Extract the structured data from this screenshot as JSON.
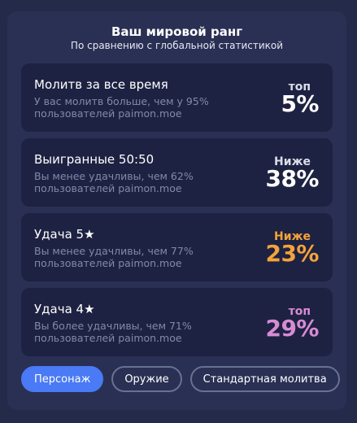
{
  "header": {
    "title": "Ваш мировой ранг",
    "subtitle": "По сравнению с глобальной статистикой"
  },
  "cards": [
    {
      "title": "Молитв за все время",
      "desc": "У вас молитв больше, чем у 95% пользователей paimon.moe",
      "rank_word": "топ",
      "rank_pct": "5%",
      "color": "#ffffff",
      "word_color": "#dadde9"
    },
    {
      "title": "Выигранные 50:50",
      "desc": "Вы менее удачливы, чем 62% пользователей paimon.moe",
      "rank_word": "Ниже",
      "rank_pct": "38%",
      "color": "#ffffff",
      "word_color": "#dadde9"
    },
    {
      "title": "Удача 5★",
      "desc": "Вы менее удачливы, чем 77% пользователей paimon.moe",
      "rank_word": "Ниже",
      "rank_pct": "23%",
      "color": "#f3a33b",
      "word_color": "#f3a33b"
    },
    {
      "title": "Удача 4★",
      "desc": "Вы более удачливы, чем 71% пользователей paimon.moe",
      "rank_word": "топ",
      "rank_pct": "29%",
      "color": "#d88bd5",
      "word_color": "#d88bd5"
    }
  ],
  "tabs": [
    {
      "label": "Персонаж",
      "active": true
    },
    {
      "label": "Оружие",
      "active": false
    },
    {
      "label": "Стандартная молитва",
      "active": false
    }
  ]
}
